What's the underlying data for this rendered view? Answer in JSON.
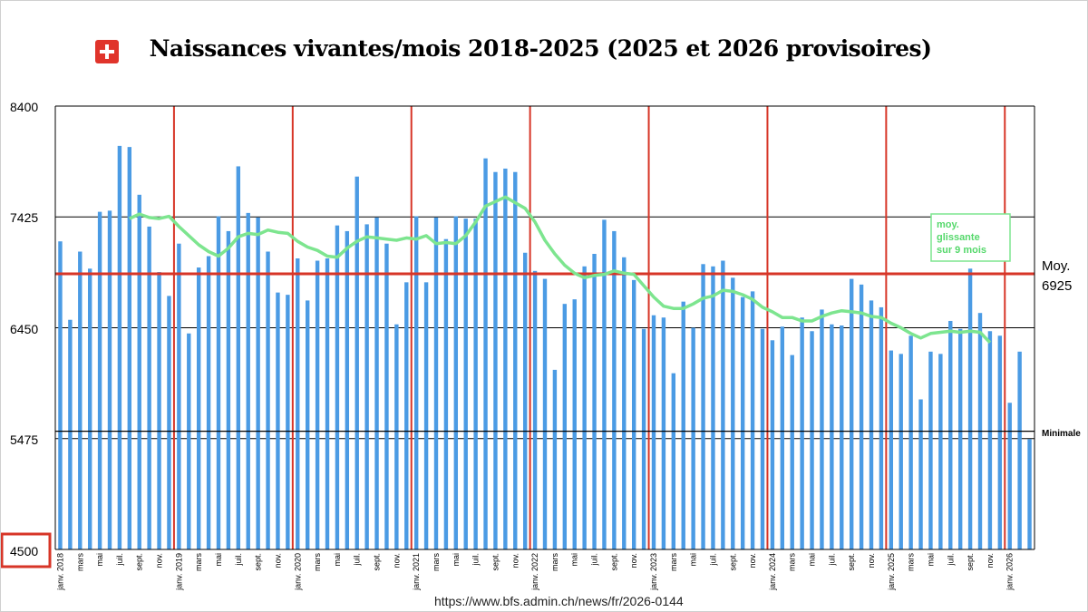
{
  "page": {
    "title": "Naissances vivantes/mois 2018-2025 (2025 et 2026 provisoires)",
    "source": "https://www.bfs.admin.ch/news/fr/2026-0144",
    "flag_icon": "swiss-flag-icon"
  },
  "colors": {
    "bar": "#4b9be4",
    "rolling_avg": "#7de58f",
    "year_line": "#d73527",
    "mean_line": "#d73527",
    "grid": "#000000"
  },
  "chart_data": {
    "type": "bar",
    "title": "Naissances vivantes/mois 2018-2025 (2025 et 2026 provisoires)",
    "ylim": [
      4500,
      8400
    ],
    "yticks": [
      4500,
      5475,
      6450,
      7425,
      8400
    ],
    "start_month": "2018-01",
    "x_tick_labels": [
      "janv. 2018",
      "mars",
      "mai",
      "juil.",
      "sept.",
      "nov.",
      "janv. 2019",
      "mars",
      "mai",
      "juil.",
      "sept.",
      "nov.",
      "janv. 2020",
      "mars",
      "mai",
      "juil.",
      "sept.",
      "nov.",
      "janv. 2021",
      "mars",
      "mai",
      "juil.",
      "sept.",
      "nov.",
      "janv. 2022",
      "mars",
      "mai",
      "juil.",
      "sept.",
      "nov.",
      "janv. 2023",
      "mars",
      "mai",
      "juil.",
      "sept.",
      "nov.",
      "janv. 2024",
      "mars",
      "mai",
      "juil.",
      "sept.",
      "nov.",
      "janv. 2025",
      "mars",
      "mai",
      "juil.",
      "sept.",
      "nov.",
      "janv. 2026"
    ],
    "series": [
      {
        "values": [
          7210,
          6520,
          7120,
          6970,
          7470,
          7480,
          8050,
          8040,
          7620,
          7340,
          6940,
          6730,
          7190,
          6400,
          6980,
          7080,
          7430,
          7300,
          7870,
          7460,
          7420,
          7120,
          6760,
          6740,
          7060,
          6690,
          7040,
          7060,
          7350,
          7300,
          7780,
          7360,
          7420,
          7190,
          6480,
          6850,
          7430,
          6850,
          7420,
          7230,
          7430,
          7410,
          7410,
          7940,
          7820,
          7850,
          7820,
          7110,
          6950,
          6880,
          6080,
          6660,
          6700,
          6990,
          7100,
          7400,
          7300,
          7070,
          6870,
          6440,
          6560,
          6540,
          6050,
          6680,
          6450,
          7010,
          6990,
          7040,
          6890,
          6720,
          6770,
          6440,
          6340,
          6460,
          6210,
          6540,
          6420,
          6610,
          6480,
          6470,
          6880,
          6830,
          6690,
          6630,
          6250,
          6220,
          6380,
          5820,
          6240,
          6220,
          6510,
          6440,
          6970,
          6580,
          6420,
          6380,
          5790,
          6240,
          5470
        ]
      },
      {
        "name": "moy. glissante sur 9 mois",
        "start_index": 7,
        "values": [
          7410,
          7450,
          7420,
          7410,
          7430,
          7340,
          7260,
          7180,
          7120,
          7080,
          7150,
          7250,
          7280,
          7270,
          7310,
          7290,
          7280,
          7210,
          7160,
          7130,
          7080,
          7070,
          7150,
          7210,
          7250,
          7240,
          7230,
          7220,
          7240,
          7230,
          7260,
          7190,
          7200,
          7190,
          7260,
          7380,
          7520,
          7560,
          7600,
          7550,
          7500,
          7380,
          7220,
          7100,
          7000,
          6930,
          6890,
          6910,
          6920,
          6950,
          6930,
          6920,
          6820,
          6720,
          6640,
          6620,
          6620,
          6660,
          6710,
          6730,
          6780,
          6770,
          6740,
          6700,
          6630,
          6590,
          6540,
          6540,
          6510,
          6510,
          6550,
          6580,
          6600,
          6590,
          6580,
          6550,
          6540,
          6490,
          6450,
          6400,
          6360,
          6400,
          6410,
          6420,
          6410,
          6420,
          6410,
          6320
        ]
      }
    ],
    "reference_lines": [
      {
        "label": "Moy.",
        "value_label": "6925",
        "value": 6925
      },
      {
        "label": "Minimale",
        "value": 5540
      }
    ],
    "annotation": {
      "line1": "moy.",
      "line2": "glissante",
      "line3": "sur 9 mois"
    },
    "ymin_box_label": "4500"
  }
}
